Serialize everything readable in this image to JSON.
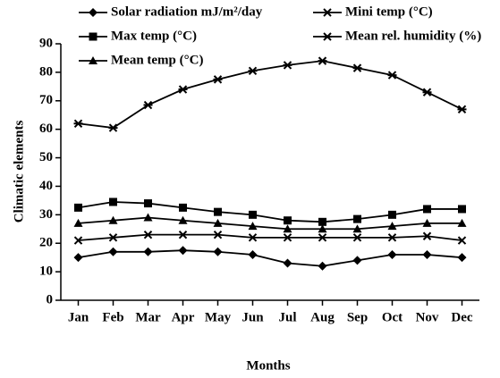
{
  "chart_data": {
    "type": "line",
    "x_label": "Months",
    "y_label": "Climatic elements",
    "categories": [
      "Jan",
      "Feb",
      "Mar",
      "Apr",
      "May",
      "Jun",
      "Jul",
      "Aug",
      "Sep",
      "Oct",
      "Nov",
      "Dec"
    ],
    "series": [
      {
        "name": "Solar radiation mJ/m²/day",
        "color": "#000000",
        "marker": "diamond",
        "values": [
          15,
          17,
          17,
          17.5,
          17,
          16,
          13,
          12,
          14,
          16,
          16,
          15
        ]
      },
      {
        "name": "Max temp (°C)",
        "color": "#000000",
        "marker": "square",
        "values": [
          32.5,
          34.5,
          34,
          32.5,
          31,
          30,
          28,
          27.5,
          28.5,
          30,
          32,
          32
        ]
      },
      {
        "name": "Mean temp (°C)",
        "color": "#000000",
        "marker": "triangle",
        "values": [
          27,
          28,
          29,
          28,
          27,
          26,
          25,
          25,
          25,
          26,
          27,
          27
        ]
      },
      {
        "name": "Mini temp (°C)",
        "color": "#000000",
        "marker": "x",
        "values": [
          21,
          22,
          23,
          23,
          23,
          22,
          22,
          22,
          22,
          22,
          22.5,
          21
        ]
      },
      {
        "name": "Mean rel. humidity (%)",
        "color": "#000000",
        "marker": "asterisk",
        "values": [
          62,
          60.5,
          68.5,
          74,
          77.5,
          80.5,
          82.5,
          84,
          81.5,
          79,
          73,
          67
        ]
      }
    ],
    "ylim": [
      0,
      90
    ],
    "yticks": [
      0,
      10,
      20,
      30,
      40,
      50,
      60,
      70,
      80,
      90
    ],
    "grid": false
  }
}
